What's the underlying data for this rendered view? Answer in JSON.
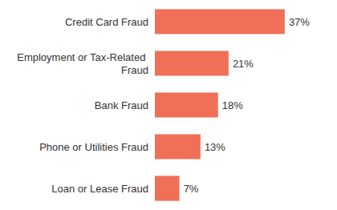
{
  "chart_data": {
    "type": "bar",
    "orientation": "horizontal",
    "categories": [
      "Credit Card Fraud",
      "Employment or Tax-Related Fraud",
      "Bank Fraud",
      "Phone or Utilities Fraud",
      "Loan or Lease Fraud"
    ],
    "values": [
      37,
      21,
      18,
      13,
      7
    ],
    "value_labels": [
      "37%",
      "21%",
      "18%",
      "13%",
      "7%"
    ],
    "color": "#f07057",
    "xlim": [
      0,
      40
    ],
    "data_labels": true,
    "tick_labels": "y",
    "grid": false
  }
}
